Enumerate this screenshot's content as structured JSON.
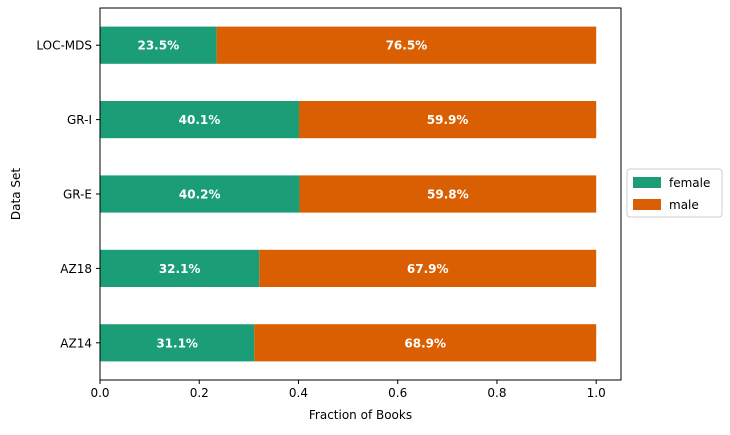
{
  "chart_data": {
    "type": "bar",
    "orientation": "horizontal",
    "stacked": true,
    "categories": [
      "AZ14",
      "AZ18",
      "GR-E",
      "GR-I",
      "LOC-MDS"
    ],
    "series": [
      {
        "name": "female",
        "color": "#1b9e77",
        "values": [
          0.311,
          0.321,
          0.402,
          0.401,
          0.235
        ],
        "labels": [
          "31.1%",
          "32.1%",
          "40.2%",
          "40.1%",
          "23.5%"
        ]
      },
      {
        "name": "male",
        "color": "#d95f02",
        "values": [
          0.689,
          0.679,
          0.598,
          0.599,
          0.765
        ],
        "labels": [
          "68.9%",
          "67.9%",
          "59.8%",
          "59.9%",
          "76.5%"
        ]
      }
    ],
    "xlabel": "Fraction of Books",
    "ylabel": "Data Set",
    "xlim": [
      0.0,
      1.05
    ],
    "xticks": [
      "0.0",
      "0.2",
      "0.4",
      "0.6",
      "0.8",
      "1.0"
    ],
    "grid": false,
    "legend_position": "right"
  }
}
